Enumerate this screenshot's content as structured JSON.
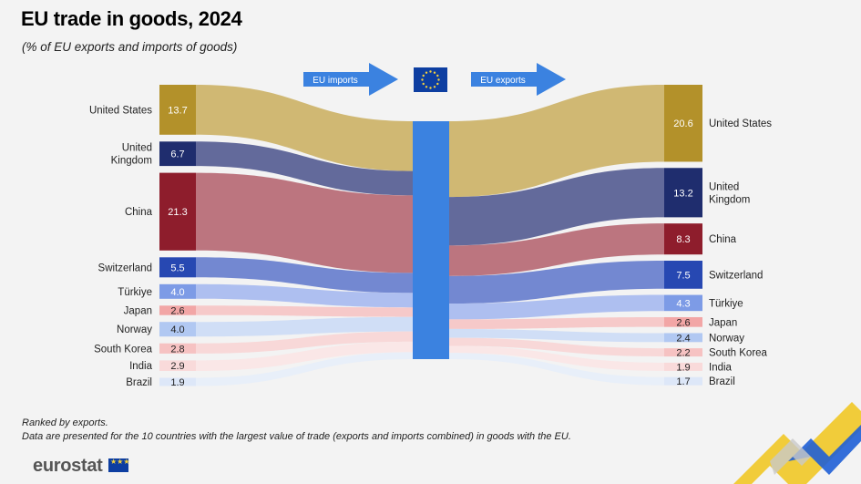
{
  "title": "EU trade in goods, 2024",
  "subtitle": "(% of EU exports and imports of goods)",
  "imports_label": "EU imports",
  "exports_label": "EU exports",
  "notes": [
    "Ranked by exports.",
    "Data are presented for the 10 countries with the largest value of trade (exports and imports combined) in goods with the EU."
  ],
  "logo_text": "eurostat",
  "colors": {
    "accent_blue": "#3b82e0",
    "flag_blue": "#0d3ea1",
    "flag_star": "#f4d13d",
    "deco_yellow": "#f0c419",
    "deco_blue": "#1f5fd6"
  },
  "chart_data": {
    "type": "sankey",
    "title": "EU trade in goods, 2024",
    "subtitle": "(% of EU exports and imports of goods)",
    "unit": "%",
    "series": [
      {
        "name": "EU imports",
        "direction": "left"
      },
      {
        "name": "EU exports",
        "direction": "right"
      }
    ],
    "countries": [
      {
        "name": "United States",
        "imports": 13.7,
        "exports": 20.6,
        "color": "#b3912a",
        "flow": "#cdb46c",
        "label_color": "#ffffff",
        "left_label_lines": [
          "United States"
        ],
        "right_label_lines": [
          "United States"
        ]
      },
      {
        "name": "United Kingdom",
        "imports": 6.7,
        "exports": 13.2,
        "color": "#1f2d6e",
        "flow": "#5b6296",
        "label_color": "#ffffff",
        "left_label_lines": [
          "United",
          "Kingdom"
        ],
        "right_label_lines": [
          "United",
          "Kingdom"
        ]
      },
      {
        "name": "China",
        "imports": 21.3,
        "exports": 8.3,
        "color": "#8e1d2c",
        "flow": "#b86e78",
        "label_color": "#ffffff",
        "left_label_lines": [
          "China"
        ],
        "right_label_lines": [
          "China"
        ]
      },
      {
        "name": "Switzerland",
        "imports": 5.5,
        "exports": 7.5,
        "color": "#2748b2",
        "flow": "#6b82cf",
        "label_color": "#ffffff",
        "left_label_lines": [
          "Switzerland"
        ],
        "right_label_lines": [
          "Switzerland"
        ]
      },
      {
        "name": "Türkiye",
        "imports": 4.0,
        "exports": 4.3,
        "color": "#7d9be6",
        "flow": "#aabcef",
        "label_color": "#ffffff",
        "left_label_lines": [
          "Türkiye"
        ],
        "right_label_lines": [
          "Türkiye"
        ]
      },
      {
        "name": "Japan",
        "imports": 2.6,
        "exports": 2.6,
        "color": "#f2a6a6",
        "flow": "#f6c6c6",
        "label_color": "#222222",
        "left_label_lines": [
          "Japan"
        ],
        "right_label_lines": [
          "Japan"
        ]
      },
      {
        "name": "Norway",
        "imports": 4.0,
        "exports": 2.4,
        "color": "#b1c8f2",
        "flow": "#cddcf6",
        "label_color": "#222222",
        "left_label_lines": [
          "Norway"
        ],
        "right_label_lines": [
          "Norway"
        ]
      },
      {
        "name": "South Korea",
        "imports": 2.8,
        "exports": 2.2,
        "color": "#f6c2c2",
        "flow": "#f8d6d6",
        "label_color": "#222222",
        "left_label_lines": [
          "South Korea"
        ],
        "right_label_lines": [
          "South Korea"
        ]
      },
      {
        "name": "India",
        "imports": 2.9,
        "exports": 1.9,
        "color": "#f9dada",
        "flow": "#fae6e6",
        "label_color": "#222222",
        "left_label_lines": [
          "India"
        ],
        "right_label_lines": [
          "India"
        ]
      },
      {
        "name": "Brazil",
        "imports": 1.9,
        "exports": 1.7,
        "color": "#dde7f8",
        "flow": "#e7eef9",
        "label_color": "#222222",
        "left_label_lines": [
          "Brazil"
        ],
        "right_label_lines": [
          "Brazil"
        ]
      }
    ]
  }
}
